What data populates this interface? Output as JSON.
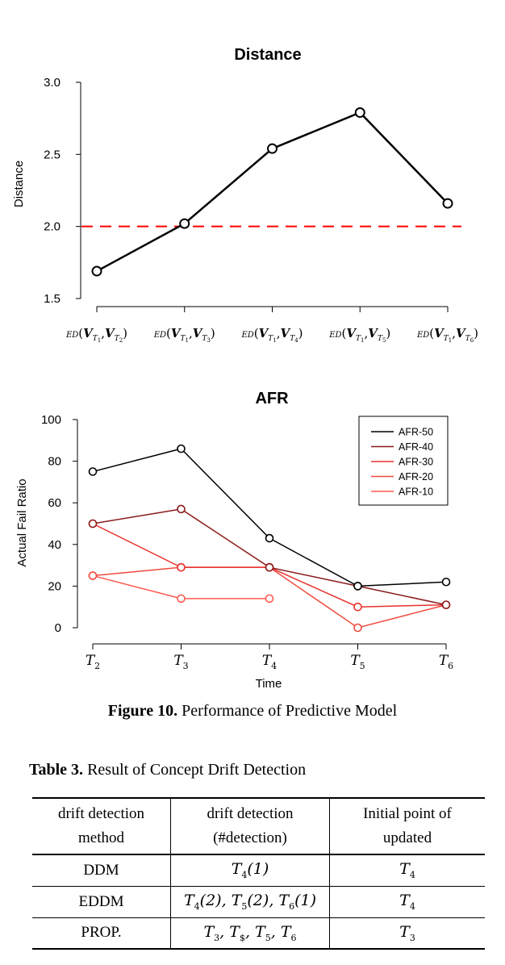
{
  "chart_data": [
    {
      "type": "line",
      "title": "Distance",
      "xlabel": "",
      "ylabel": "Distance",
      "categories": [
        "ED(V_T1, V_T2)",
        "ED(V_T1, V_T3)",
        "ED(V_T1, V_T4)",
        "ED(V_T1, V_T5)",
        "ED(V_T1, V_T6)"
      ],
      "series": [
        {
          "values": [
            1.69,
            2.02,
            2.54,
            2.79,
            2.16
          ],
          "color": "#000000"
        }
      ],
      "threshold": {
        "value": 2.0,
        "color": "#ff0000",
        "style": "dashed"
      },
      "ylim": [
        1.5,
        3.0
      ],
      "yticks": [
        "1.5",
        "2.0",
        "2.5",
        "3.0"
      ],
      "grid": false
    },
    {
      "type": "line",
      "title": "AFR",
      "xlabel": "Time",
      "ylabel": "Actual Fail Ratio",
      "categories": [
        "T2",
        "T3",
        "T4",
        "T5",
        "T6"
      ],
      "series": [
        {
          "name": "AFR-50",
          "values": [
            75,
            86,
            43,
            20,
            22
          ],
          "color": "#000000"
        },
        {
          "name": "AFR-40",
          "values": [
            50,
            57,
            29,
            20,
            11
          ],
          "color": "#8b1a1a"
        },
        {
          "name": "AFR-30",
          "values": [
            50,
            29,
            29,
            10,
            11
          ],
          "color": "#e8322e"
        },
        {
          "name": "AFR-20",
          "values": [
            25,
            29,
            29,
            0,
            11
          ],
          "color": "#f04a3e"
        },
        {
          "name": "AFR-10",
          "values": [
            25,
            14,
            14,
            null,
            null
          ],
          "color": "#ff5a50"
        }
      ],
      "ylim": [
        0,
        100
      ],
      "yticks": [
        "0",
        "20",
        "40",
        "60",
        "80",
        "100"
      ],
      "legend": "top-right",
      "grid": false
    }
  ],
  "figure": {
    "label": "Figure 10.",
    "caption": "Performance of  Predictive Model"
  },
  "table": {
    "label": "Table 3.",
    "title": "Result of Concept Drift Detection",
    "headers": [
      [
        "drift  detection",
        "method"
      ],
      [
        "drift  detection",
        "(#detection)"
      ],
      [
        "Initial  point  of",
        "updated"
      ]
    ],
    "rows": [
      {
        "method": "DDM",
        "detection": "T4(1)",
        "initial": "T4"
      },
      {
        "method": "EDDM",
        "detection": "T4(2), T5(2), T6(1)",
        "initial": "T4"
      },
      {
        "method": "PROP.",
        "detection": "T3,  T$,  T5,  T6",
        "initial": "T3"
      }
    ]
  }
}
